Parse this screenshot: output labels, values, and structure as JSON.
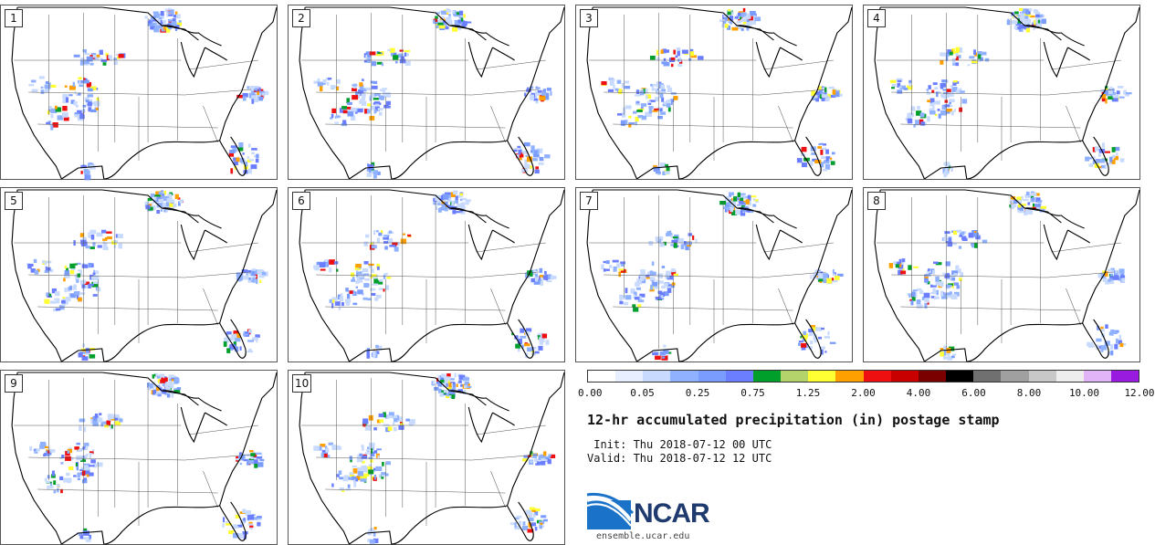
{
  "panels": [
    {
      "label": "1"
    },
    {
      "label": "2"
    },
    {
      "label": "3"
    },
    {
      "label": "4"
    },
    {
      "label": "5"
    },
    {
      "label": "6"
    },
    {
      "label": "7"
    },
    {
      "label": "8"
    },
    {
      "label": "9"
    },
    {
      "label": "10"
    }
  ],
  "colorbar": {
    "colors": [
      "#ffffff",
      "#e8f0ff",
      "#c9daff",
      "#8fb1ff",
      "#7a9cff",
      "#6a7eff",
      "#009e2a",
      "#b5d36b",
      "#ffff33",
      "#ff9f00",
      "#ee1010",
      "#c80000",
      "#7a0000",
      "#000000",
      "#707070",
      "#a0a0a0",
      "#c8c8c8",
      "#eeeeee",
      "#e1b3f7",
      "#9a1be0"
    ],
    "tick_labels": [
      "0.00",
      "0.05",
      "0.25",
      "0.75",
      "1.25",
      "2.00",
      "4.00",
      "6.00",
      "8.00",
      "10.00",
      "12.00"
    ]
  },
  "title": "12-hr accumulated precipitation (in) postage stamp",
  "init_text": " Init: Thu 2018-07-12 00 UTC",
  "valid_text": "Valid: Thu 2018-07-12 12 UTC",
  "logo": {
    "name": "NCAR",
    "url": "ensemble.ucar.edu"
  }
}
